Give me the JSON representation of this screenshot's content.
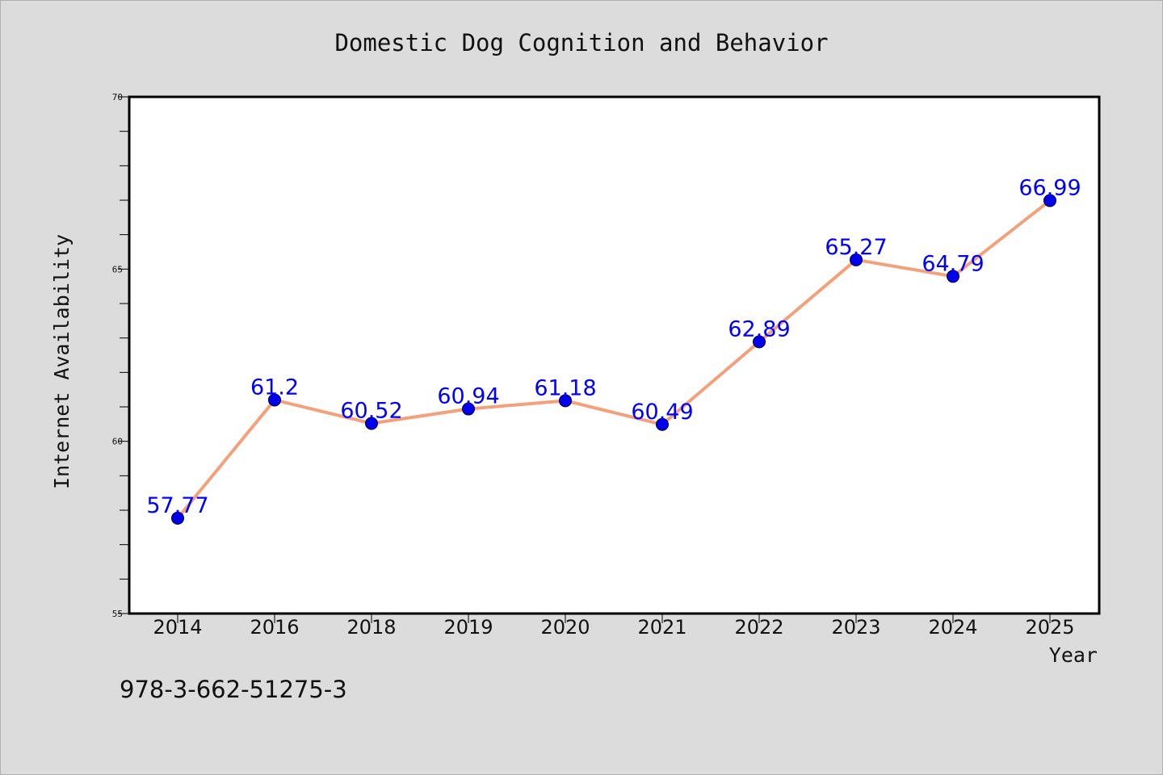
{
  "figure": {
    "isbn_text": "978-3-662-51275-3"
  },
  "chart_data": {
    "type": "line",
    "title": "Domestic Dog Cognition and Behavior",
    "xlabel": "Year",
    "ylabel": "Internet Availability",
    "categories": [
      "2014",
      "2016",
      "2018",
      "2019",
      "2020",
      "2021",
      "2022",
      "2023",
      "2024",
      "2025"
    ],
    "series": [
      {
        "values": [
          57.77,
          61.2,
          60.52,
          60.94,
          61.18,
          60.49,
          62.89,
          65.27,
          64.79,
          66.99
        ],
        "data_labels": [
          "57.77",
          "61.2",
          "60.52",
          "60.94",
          "61.18",
          "60.49",
          "62.89",
          "65.27",
          "64.79",
          "66.99"
        ]
      }
    ],
    "ylim": [
      55,
      70
    ],
    "yticks": [
      55,
      60,
      65,
      70
    ],
    "ytick_labels": [
      "55",
      "60",
      "65",
      "70"
    ],
    "grid": false,
    "legend": "none",
    "colors": {
      "line": "#f4a07a",
      "marker": "#0000ee",
      "data_label": "#0000ff",
      "background": "#dcdcdc",
      "plot_background": "#ffffff"
    }
  }
}
